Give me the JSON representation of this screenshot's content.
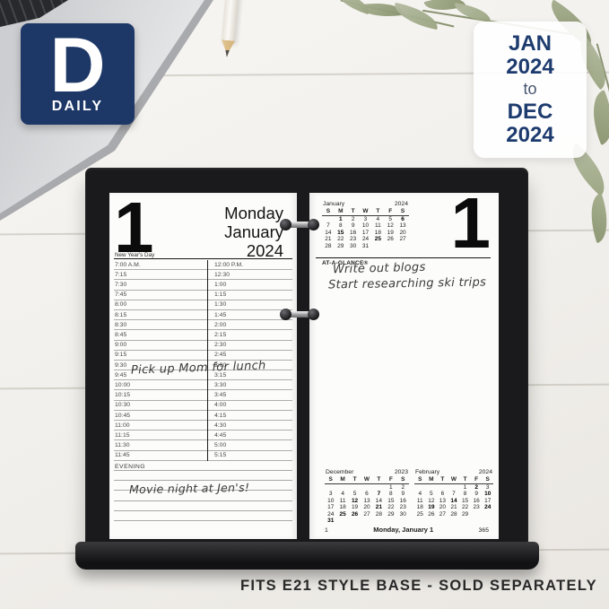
{
  "badge": {
    "letter": "D",
    "label": "DAILY"
  },
  "date_range": {
    "start_month": "JAN",
    "start_year": "2024",
    "connector": "to",
    "end_month": "DEC",
    "end_year": "2024"
  },
  "left_page": {
    "day_number": "1",
    "weekday": "Monday",
    "month": "January",
    "year": "2024",
    "holiday": "New Year's Day",
    "evening_label": "EVENING",
    "handwriting": {
      "schedule_note": "Pick up Mom for lunch",
      "evening_note": "Movie night at Jen's!"
    },
    "schedule": {
      "am_times": [
        "7:00 A.M.",
        "7:15",
        "7:30",
        "7:45",
        "8:00",
        "8:15",
        "8:30",
        "8:45",
        "9:00",
        "9:15",
        "9:30",
        "9:45",
        "10:00",
        "10:15",
        "10:30",
        "10:45",
        "11:00",
        "11:15",
        "11:30",
        "11:45"
      ],
      "pm_times": [
        "12:00 P.M.",
        "12:30",
        "1:00",
        "1:15",
        "1:30",
        "1:45",
        "2:00",
        "2:15",
        "2:30",
        "2:45",
        "3:00",
        "3:15",
        "3:30",
        "3:45",
        "4:00",
        "4:15",
        "4:30",
        "4:45",
        "5:00",
        "5:15"
      ]
    }
  },
  "right_page": {
    "day_number": "1",
    "brand": "AT-A-GLANCE®",
    "handwriting": {
      "note1": "Write out blogs",
      "note2": "Start researching ski trips"
    },
    "mini_calendars": {
      "january": {
        "month": "January",
        "year": "2024",
        "day_headers": [
          "S",
          "M",
          "T",
          "W",
          "T",
          "F",
          "S"
        ],
        "weeks": [
          [
            "",
            "1",
            "2",
            "3",
            "4",
            "5",
            "6"
          ],
          [
            "7",
            "8",
            "9",
            "10",
            "11",
            "12",
            "13"
          ],
          [
            "14",
            "15",
            "16",
            "17",
            "18",
            "19",
            "20"
          ],
          [
            "21",
            "22",
            "23",
            "24",
            "25",
            "26",
            "27"
          ],
          [
            "28",
            "29",
            "30",
            "31",
            "",
            "",
            ""
          ]
        ],
        "bold_days": [
          "1",
          "6",
          "15",
          "25"
        ]
      },
      "december": {
        "month": "December",
        "year": "2023",
        "day_headers": [
          "S",
          "M",
          "T",
          "W",
          "T",
          "F",
          "S"
        ],
        "weeks": [
          [
            "",
            "",
            "",
            "",
            "",
            "1",
            "2"
          ],
          [
            "3",
            "4",
            "5",
            "6",
            "7",
            "8",
            "9"
          ],
          [
            "10",
            "11",
            "12",
            "13",
            "14",
            "15",
            "16"
          ],
          [
            "17",
            "18",
            "19",
            "20",
            "21",
            "22",
            "23"
          ],
          [
            "24",
            "25",
            "26",
            "27",
            "28",
            "29",
            "30"
          ],
          [
            "31",
            "",
            "",
            "",
            "",
            "",
            ""
          ]
        ],
        "bold_days": [
          "7",
          "12",
          "21",
          "25",
          "26",
          "31"
        ]
      },
      "february": {
        "month": "February",
        "year": "2024",
        "day_headers": [
          "S",
          "M",
          "T",
          "W",
          "T",
          "F",
          "S"
        ],
        "weeks": [
          [
            "",
            "",
            "",
            "",
            "1",
            "2",
            "3"
          ],
          [
            "4",
            "5",
            "6",
            "7",
            "8",
            "9",
            "10"
          ],
          [
            "11",
            "12",
            "13",
            "14",
            "15",
            "16",
            "17"
          ],
          [
            "18",
            "19",
            "20",
            "21",
            "22",
            "23",
            "24"
          ],
          [
            "25",
            "26",
            "27",
            "28",
            "29",
            "",
            ""
          ]
        ],
        "bold_days": [
          "2",
          "10",
          "14",
          "19",
          "24"
        ]
      }
    },
    "footer": {
      "day_of_year": "1",
      "date_label": "Monday, January 1",
      "days_remaining": "365"
    }
  },
  "caption": "FITS E21 STYLE BASE - SOLD SEPARATELY"
}
